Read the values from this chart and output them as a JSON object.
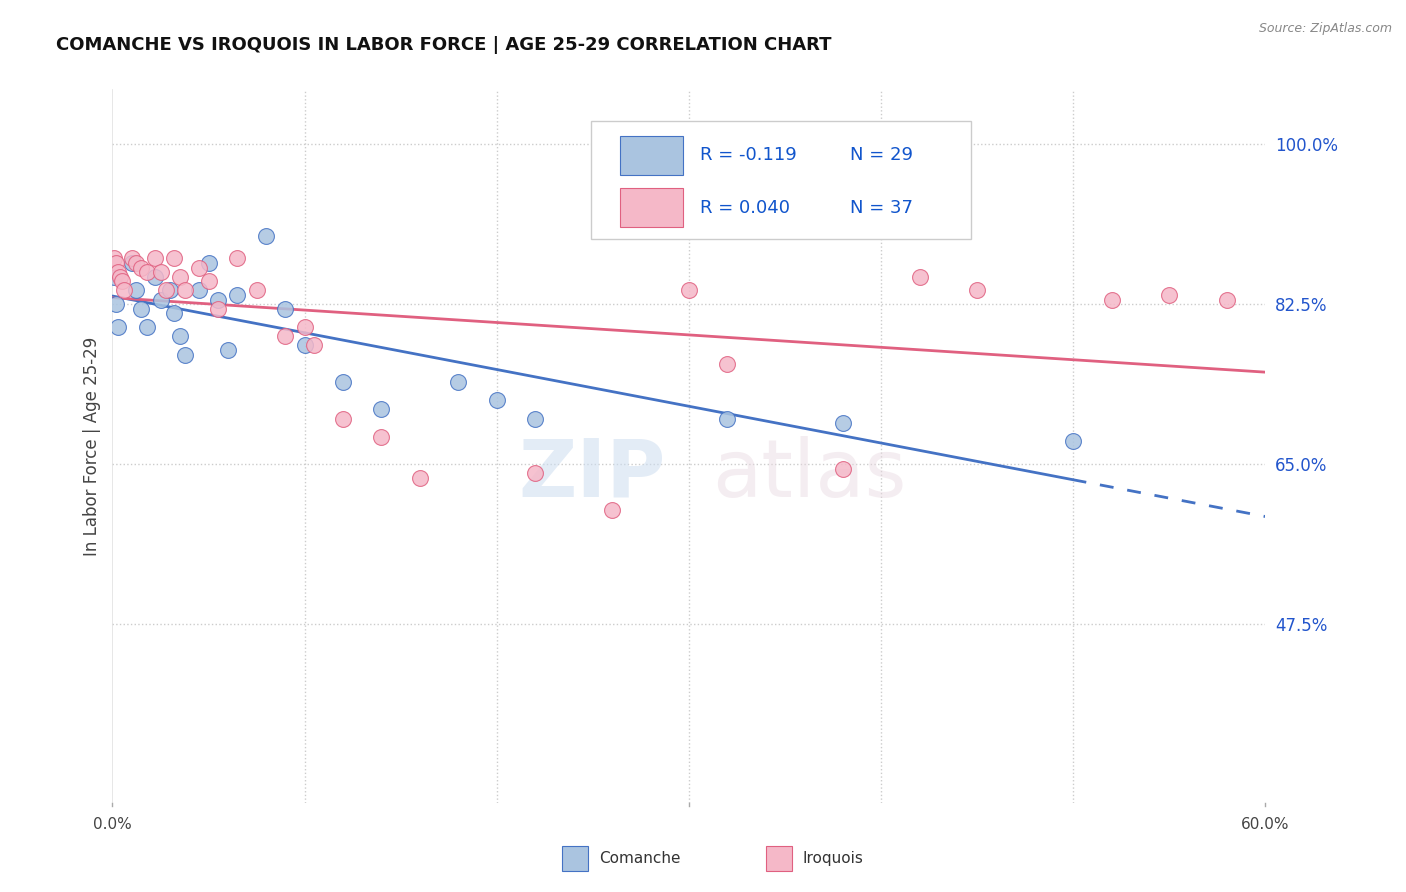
{
  "title": "COMANCHE VS IROQUOIS IN LABOR FORCE | AGE 25-29 CORRELATION CHART",
  "source": "Source: ZipAtlas.com",
  "ylabel": "In Labor Force | Age 25-29",
  "yticks": [
    0.475,
    0.65,
    0.825,
    1.0
  ],
  "ytick_labels": [
    "47.5%",
    "65.0%",
    "82.5%",
    "100.0%"
  ],
  "xmin": 0.0,
  "xmax": 0.6,
  "ymin": 0.28,
  "ymax": 1.06,
  "comanche_color": "#aac4e0",
  "iroquois_color": "#f5b8c8",
  "comanche_line_color": "#4472c4",
  "iroquois_line_color": "#e06080",
  "comanche_R": -0.119,
  "comanche_N": 29,
  "iroquois_R": 0.04,
  "iroquois_N": 37,
  "legend_R_color": "#1155cc",
  "comanche_x": [
    0.001,
    0.002,
    0.003,
    0.01,
    0.012,
    0.015,
    0.018,
    0.022,
    0.025,
    0.03,
    0.032,
    0.035,
    0.038,
    0.045,
    0.05,
    0.055,
    0.06,
    0.065,
    0.08,
    0.09,
    0.1,
    0.12,
    0.14,
    0.18,
    0.2,
    0.22,
    0.32,
    0.38,
    0.5
  ],
  "comanche_y": [
    0.855,
    0.825,
    0.8,
    0.87,
    0.84,
    0.82,
    0.8,
    0.855,
    0.83,
    0.84,
    0.815,
    0.79,
    0.77,
    0.84,
    0.87,
    0.83,
    0.775,
    0.835,
    0.9,
    0.82,
    0.78,
    0.74,
    0.71,
    0.74,
    0.72,
    0.7,
    0.7,
    0.695,
    0.675
  ],
  "iroquois_x": [
    0.001,
    0.002,
    0.003,
    0.004,
    0.005,
    0.006,
    0.01,
    0.012,
    0.015,
    0.018,
    0.022,
    0.025,
    0.028,
    0.032,
    0.035,
    0.038,
    0.045,
    0.05,
    0.055,
    0.065,
    0.075,
    0.09,
    0.1,
    0.105,
    0.12,
    0.14,
    0.16,
    0.22,
    0.26,
    0.3,
    0.32,
    0.38,
    0.42,
    0.45,
    0.52,
    0.55,
    0.58
  ],
  "iroquois_y": [
    0.875,
    0.87,
    0.86,
    0.855,
    0.85,
    0.84,
    0.875,
    0.87,
    0.865,
    0.86,
    0.875,
    0.86,
    0.84,
    0.875,
    0.855,
    0.84,
    0.865,
    0.85,
    0.82,
    0.875,
    0.84,
    0.79,
    0.8,
    0.78,
    0.7,
    0.68,
    0.635,
    0.64,
    0.6,
    0.84,
    0.76,
    0.645,
    0.855,
    0.84,
    0.83,
    0.835,
    0.83
  ]
}
